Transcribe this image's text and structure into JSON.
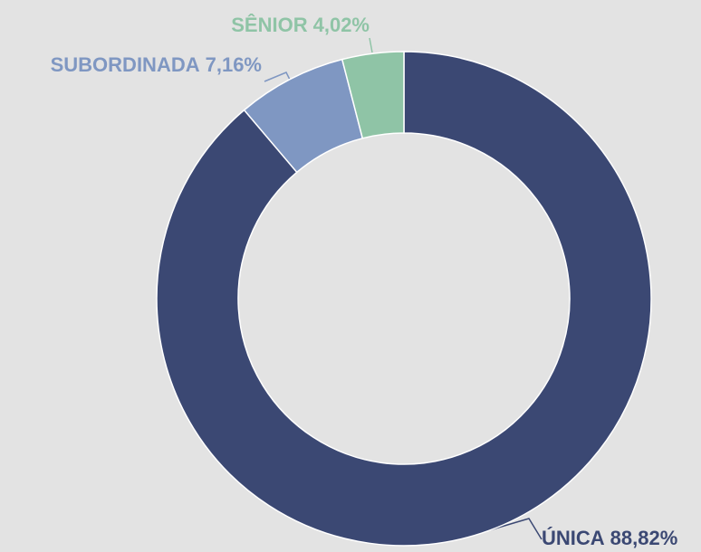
{
  "chart_data": {
    "type": "pie",
    "categories": [
      "ÚNICA",
      "SUBORDINADA",
      "SÊNIOR"
    ],
    "values": [
      88.82,
      7.16,
      4.02
    ],
    "value_labels": [
      "88,82%",
      "7,16%",
      "4,02%"
    ],
    "colors": [
      "#3b4873",
      "#7f97c2",
      "#8fc4a6"
    ],
    "donut": true
  }
}
